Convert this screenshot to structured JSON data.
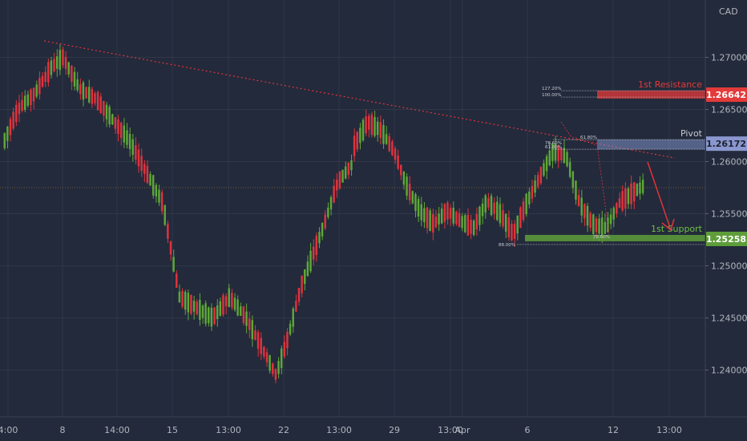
{
  "chart_data": {
    "type": "candlestick",
    "currency_label": "CAD",
    "y_ticks": [
      "1.27000",
      "1.26500",
      "1.26000",
      "1.25500",
      "1.25000",
      "1.24500",
      "1.24000"
    ],
    "y_tick_values": [
      1.27,
      1.265,
      1.26,
      1.255,
      1.25,
      1.245,
      1.24
    ],
    "ylim": [
      1.2355,
      1.2755
    ],
    "x_ticks": [
      "4:00",
      "8",
      "14:00",
      "15",
      "13:00",
      "22",
      "13:00",
      "29",
      "13:00",
      "Apr",
      "6",
      "12",
      "13:00"
    ],
    "candle_count": 220,
    "trend": {
      "start": 1.2708,
      "mid": 1.2648,
      "low1": 1.2385,
      "recover": 1.2638,
      "range_low": 1.2527,
      "range_high": 1.2616,
      "swing_low": 1.253,
      "last": 1.2578
    },
    "levels": [
      {
        "name": "resistance",
        "label": "1st Resistance",
        "price": "1.26642",
        "value": 1.26642,
        "color": "#e33a3a"
      },
      {
        "name": "pivot",
        "label": "Pivot",
        "price": "1.26172",
        "value": 1.26172,
        "color": "#7f8fc8"
      },
      {
        "name": "support",
        "label": "1st Support",
        "price": "1.25258",
        "value": 1.25258,
        "color": "#5e9e3a"
      }
    ],
    "fib_labels": {
      "resistance": [
        "127.20%",
        "100.00%"
      ],
      "pivot": [
        "61.80%",
        "78.60%",
        "61.80%"
      ],
      "support_left": "88.00%",
      "support_right": "78.60%"
    },
    "current_price": 1.2575,
    "colors": {
      "up": "#5ea838",
      "down": "#e0333d",
      "background": "#232a3b",
      "grid": "#2f3748",
      "text": "#b2b5be"
    }
  }
}
